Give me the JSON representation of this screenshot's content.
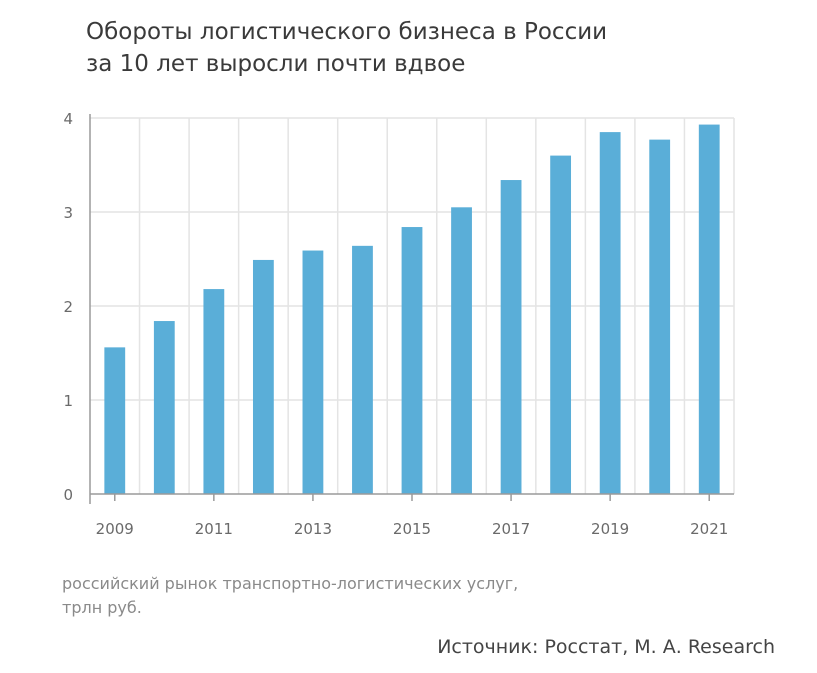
{
  "title": {
    "line1": "Обороты логистического бизнеса в России",
    "line2": "за 10 лет выросли почти вдвое"
  },
  "caption": {
    "line1": "российский рынок транспортно-логистических услуг,",
    "line2": "трлн руб."
  },
  "source": "Источник: Росстат, М. А. Research",
  "chart_data": {
    "type": "bar",
    "x": [
      2009,
      2010,
      2011,
      2012,
      2013,
      2014,
      2015,
      2016,
      2017,
      2018,
      2019,
      2020,
      2021
    ],
    "values": [
      1.56,
      1.84,
      2.18,
      2.49,
      2.59,
      2.64,
      2.84,
      3.05,
      3.34,
      3.6,
      3.85,
      3.77,
      3.93
    ],
    "x_tick_labels": [
      "2009",
      "2011",
      "2013",
      "2015",
      "2017",
      "2019",
      "2021"
    ],
    "y_tick_labels": [
      "0",
      "1",
      "2",
      "3",
      "4"
    ],
    "ylim": [
      0,
      4
    ],
    "grid": true,
    "bar_color": "#5aaed8",
    "grid_color": "#e4e4e4",
    "axis_color": "#9a9a9a"
  }
}
